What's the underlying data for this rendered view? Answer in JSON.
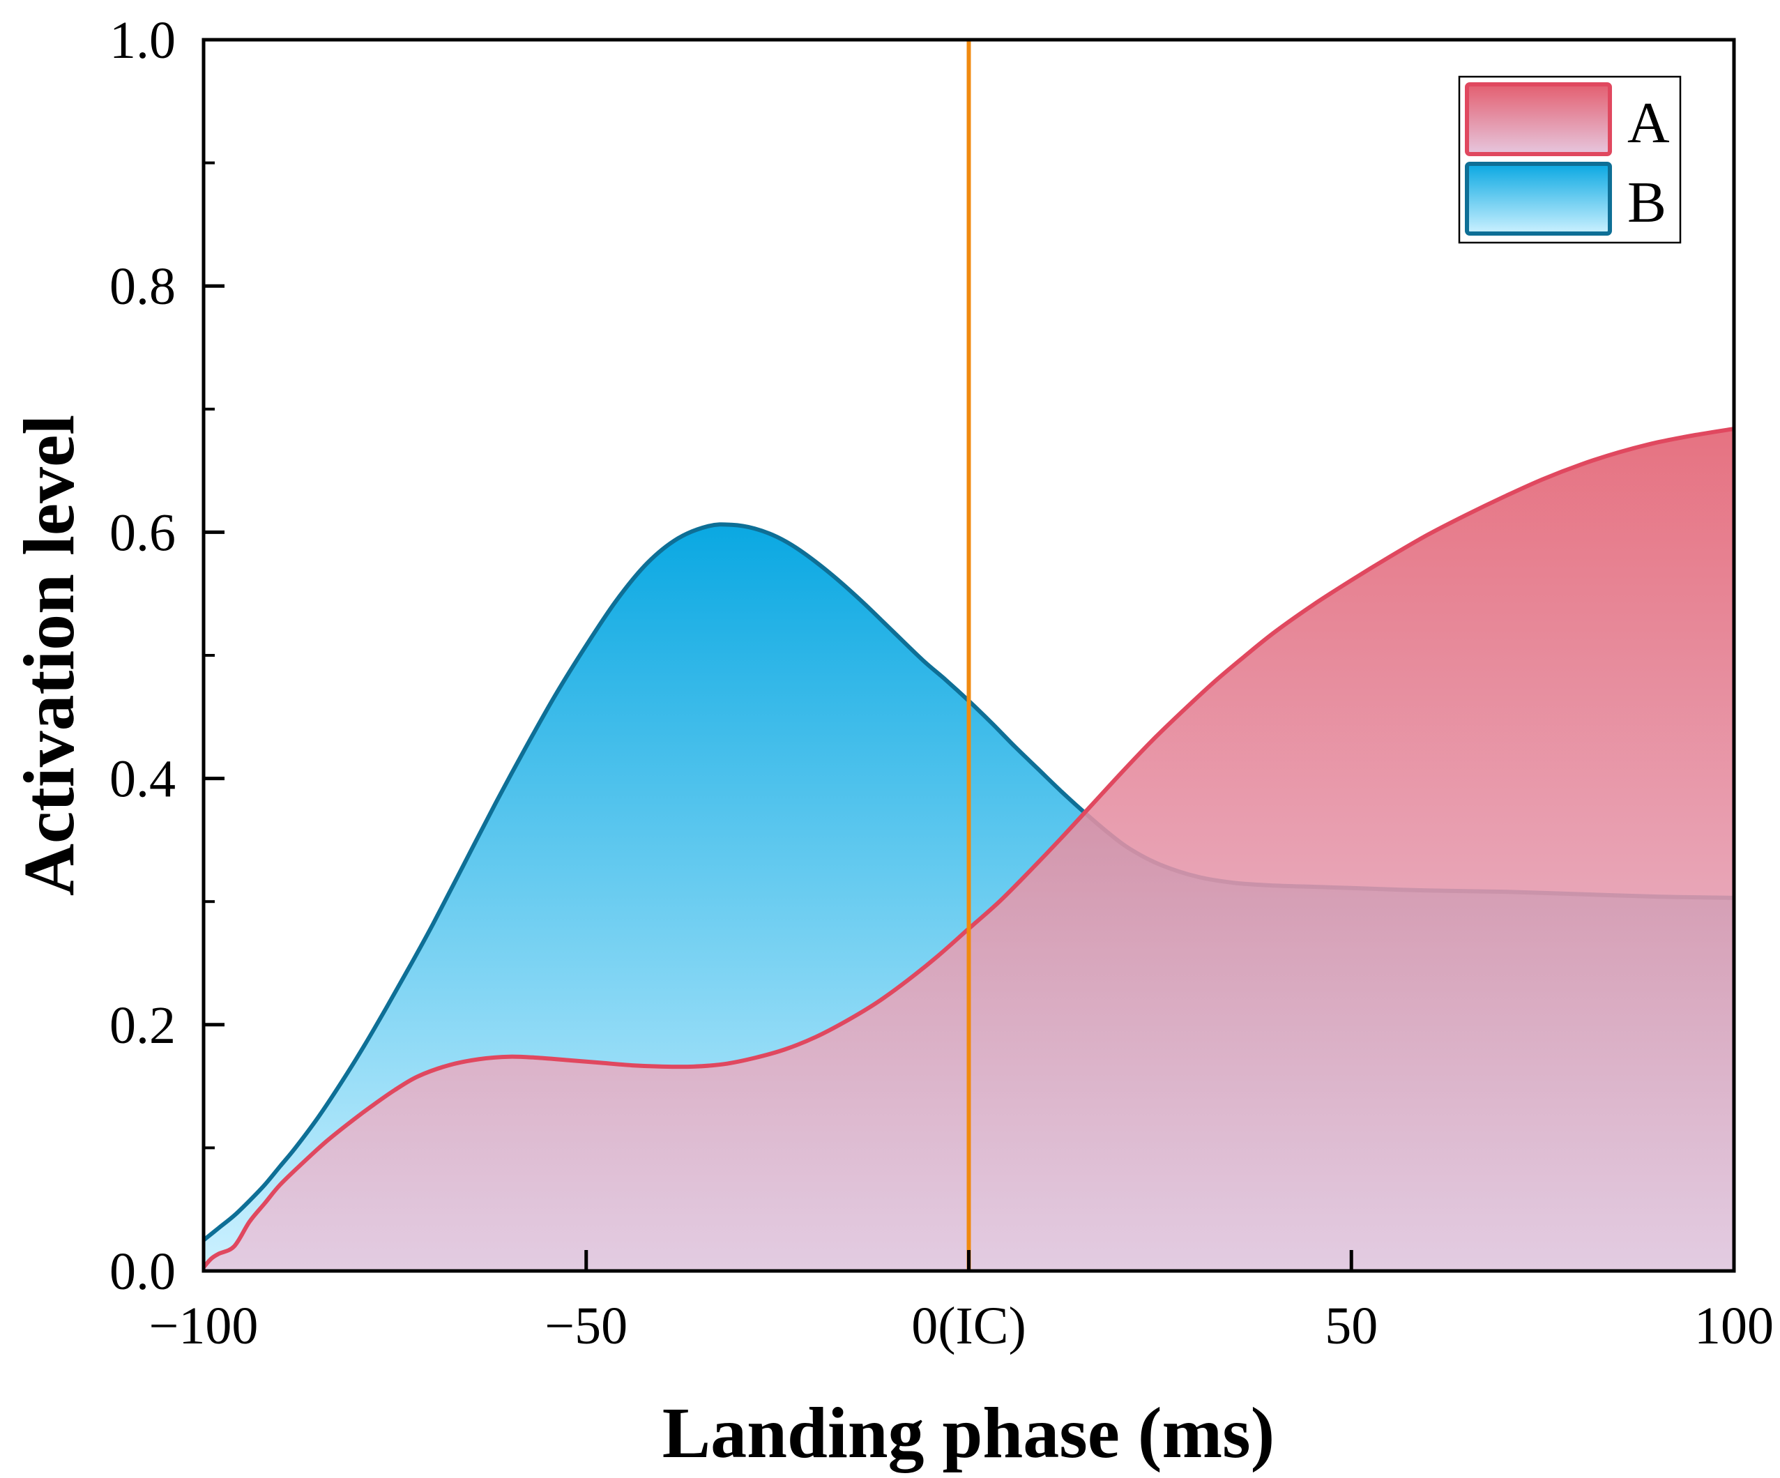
{
  "chart_data": {
    "type": "area",
    "xlabel": "Landing phase (ms)",
    "ylabel": "Activation level",
    "xlim": [
      -100,
      100
    ],
    "ylim": [
      0,
      1.0
    ],
    "x_ticks": [
      {
        "value": -100,
        "label": "−100"
      },
      {
        "value": -50,
        "label": "−50"
      },
      {
        "value": 0,
        "label": "0(IC)",
        "color": "#e00000"
      },
      {
        "value": 50,
        "label": "50"
      },
      {
        "value": 100,
        "label": "100"
      }
    ],
    "y_ticks": [
      {
        "value": 0.0,
        "label": "0.0"
      },
      {
        "value": 0.2,
        "label": "0.2"
      },
      {
        "value": 0.4,
        "label": "0.4"
      },
      {
        "value": 0.6,
        "label": "0.6"
      },
      {
        "value": 0.8,
        "label": "0.8"
      },
      {
        "value": 1.0,
        "label": "1.0"
      }
    ],
    "y_minor_ticks": [
      0.1,
      0.3,
      0.5,
      0.7,
      0.9
    ],
    "vertical_line": {
      "x": 0,
      "color": "#f08a10"
    },
    "legend": {
      "position": "top-right"
    },
    "series": [
      {
        "name": "B",
        "line_color": "#0e6f96",
        "fill_top": "#0aa8e2",
        "fill_bottom": "#ccf1ff",
        "fill_opacity": 1.0,
        "x": [
          -100,
          -98,
          -96,
          -94,
          -92,
          -90,
          -88,
          -85,
          -82,
          -79,
          -76,
          -73,
          -70,
          -66,
          -62,
          -58,
          -54,
          -50,
          -46,
          -42,
          -38,
          -34,
          -31,
          -28,
          -25,
          -22,
          -18,
          -14,
          -10,
          -6,
          -3,
          0,
          3,
          6,
          9,
          12,
          15,
          18,
          21,
          25,
          30,
          35,
          40,
          45,
          50,
          60,
          70,
          80,
          90,
          100
        ],
        "y": [
          0.025,
          0.035,
          0.045,
          0.057,
          0.07,
          0.085,
          0.1,
          0.125,
          0.153,
          0.183,
          0.215,
          0.248,
          0.282,
          0.33,
          0.378,
          0.424,
          0.468,
          0.508,
          0.545,
          0.575,
          0.595,
          0.605,
          0.606,
          0.603,
          0.596,
          0.585,
          0.566,
          0.544,
          0.52,
          0.496,
          0.48,
          0.463,
          0.445,
          0.426,
          0.408,
          0.39,
          0.373,
          0.357,
          0.343,
          0.33,
          0.32,
          0.315,
          0.313,
          0.312,
          0.311,
          0.309,
          0.308,
          0.306,
          0.304,
          0.303
        ]
      },
      {
        "name": "A",
        "line_color": "#e0485f",
        "fill_top": "#e35f70",
        "fill_bottom": "#e6c7de",
        "fill_opacity": 0.88,
        "x": [
          -100,
          -99,
          -98,
          -96,
          -94,
          -92,
          -90,
          -87,
          -84,
          -81,
          -78,
          -75,
          -72,
          -68,
          -64,
          -60,
          -56,
          -52,
          -48,
          -44,
          -40,
          -36,
          -32,
          -28,
          -24,
          -20,
          -16,
          -12,
          -8,
          -4,
          0,
          4,
          8,
          12,
          16,
          20,
          24,
          28,
          32,
          36,
          40,
          45,
          50,
          55,
          60,
          65,
          70,
          75,
          80,
          85,
          90,
          95,
          100
        ],
        "y": [
          0.003,
          0.01,
          0.014,
          0.02,
          0.04,
          0.055,
          0.07,
          0.088,
          0.105,
          0.12,
          0.134,
          0.147,
          0.158,
          0.167,
          0.172,
          0.174,
          0.173,
          0.171,
          0.169,
          0.167,
          0.166,
          0.166,
          0.168,
          0.173,
          0.18,
          0.19,
          0.203,
          0.218,
          0.236,
          0.256,
          0.278,
          0.3,
          0.325,
          0.351,
          0.378,
          0.405,
          0.431,
          0.455,
          0.478,
          0.499,
          0.519,
          0.541,
          0.561,
          0.58,
          0.598,
          0.614,
          0.629,
          0.643,
          0.655,
          0.665,
          0.673,
          0.679,
          0.684
        ]
      }
    ]
  }
}
